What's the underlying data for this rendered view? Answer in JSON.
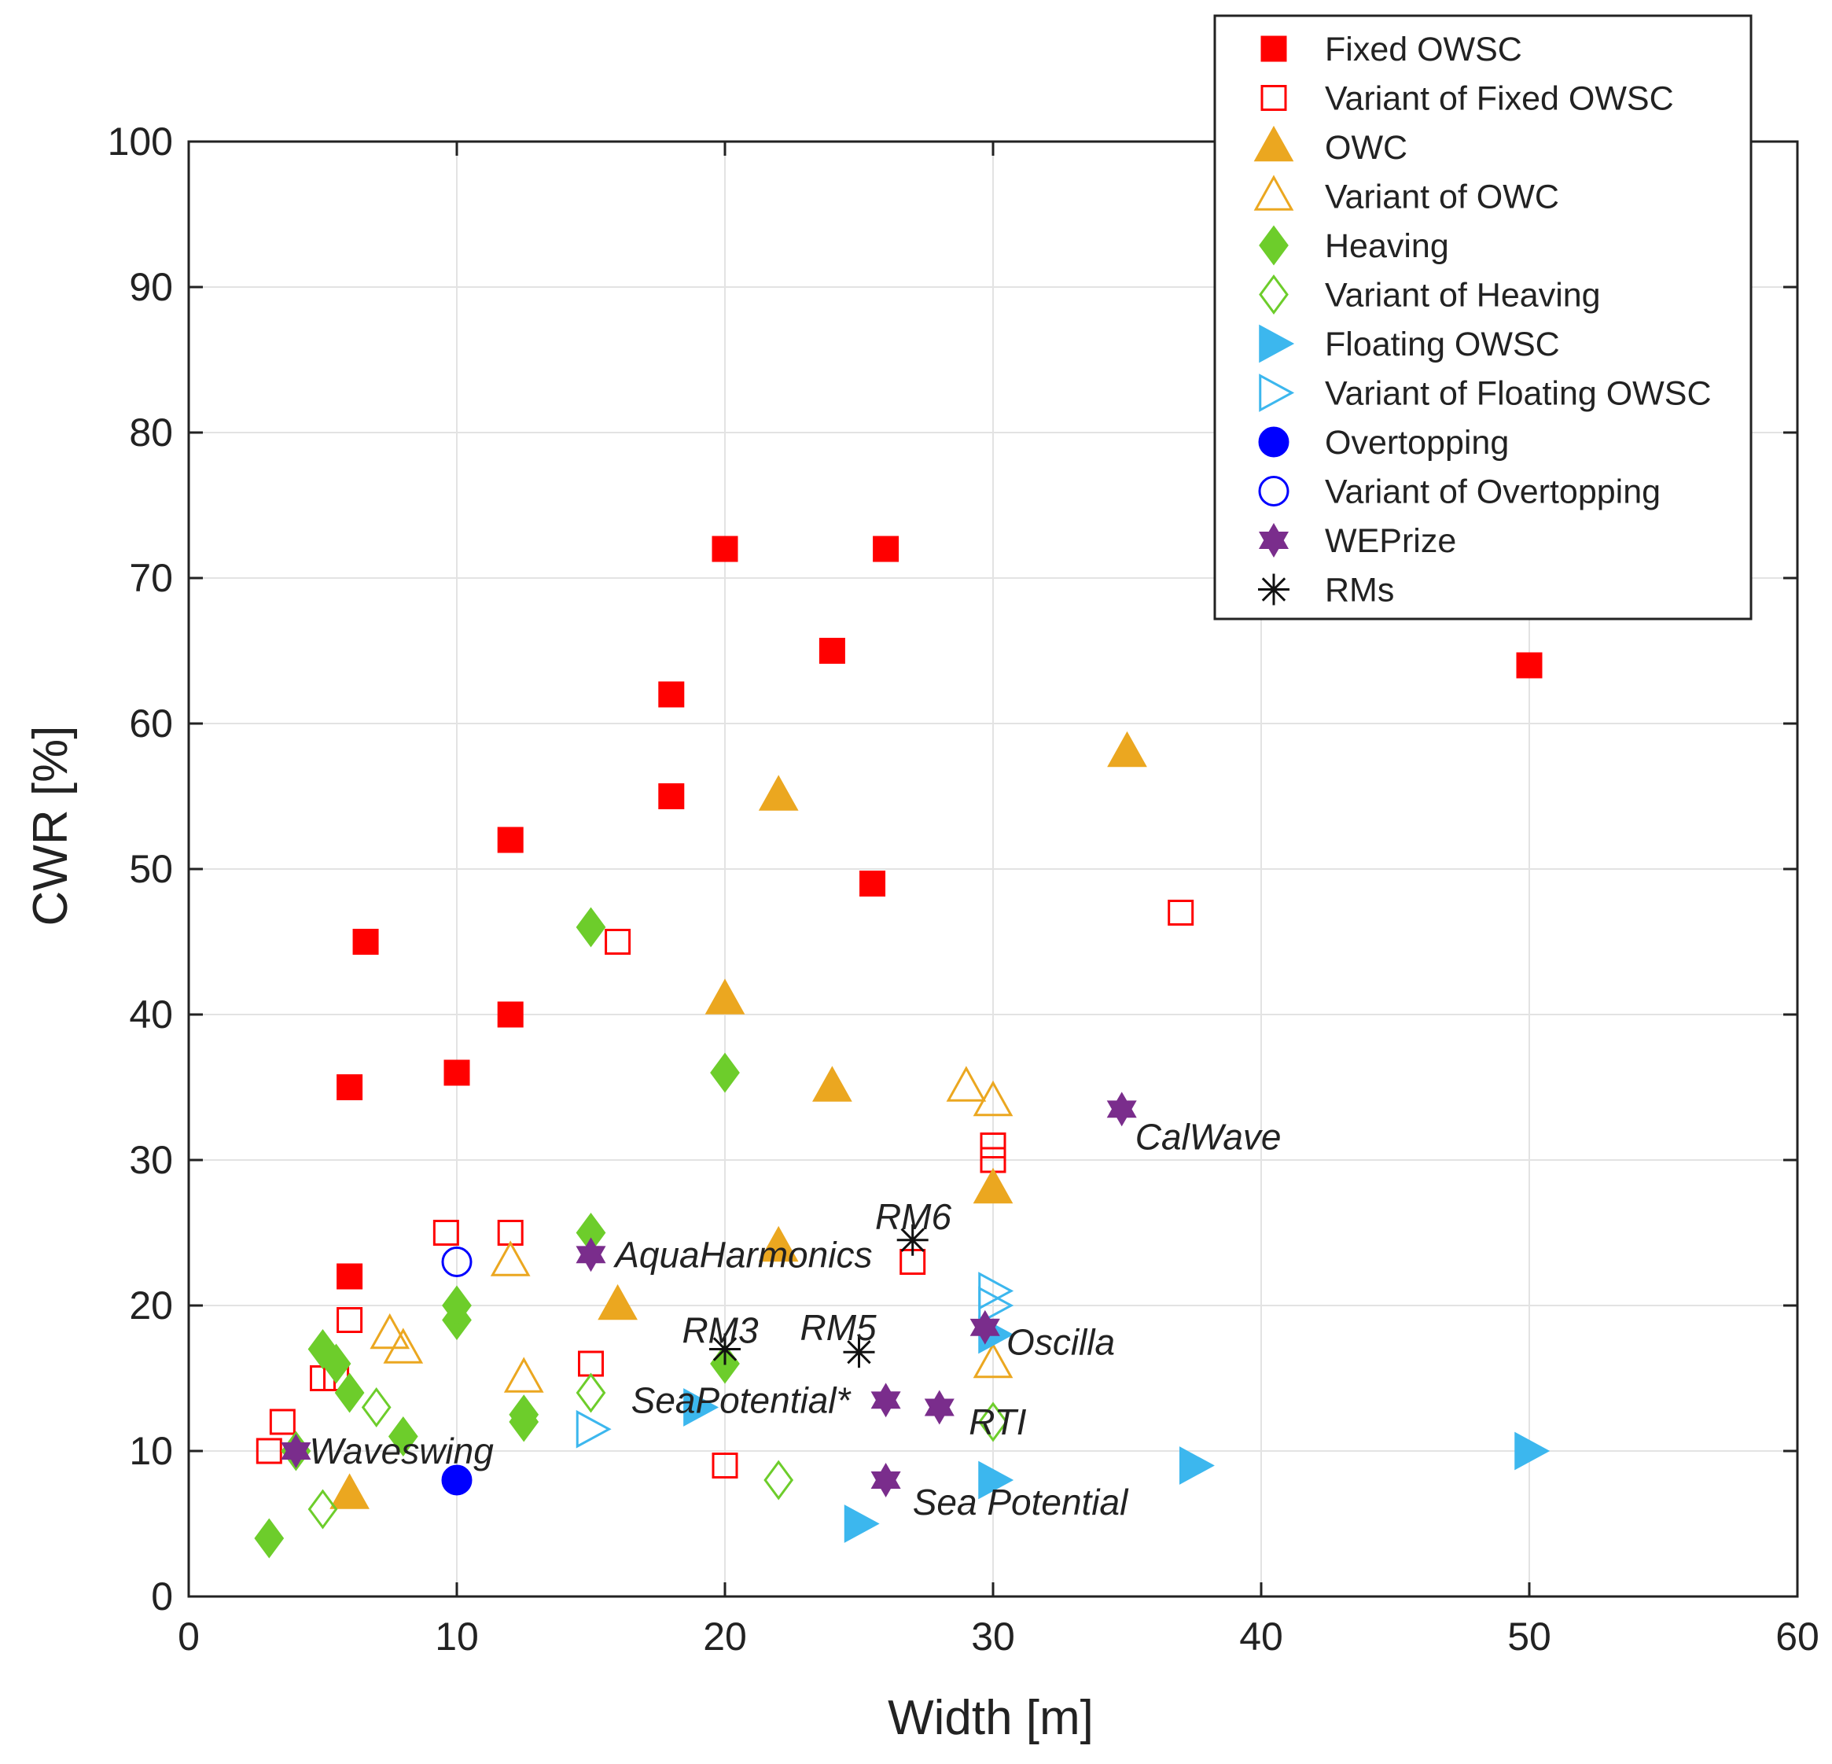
{
  "chart_data": {
    "type": "scatter",
    "title": "",
    "xlabel": "Width  [m]",
    "ylabel": "CWR  [%]",
    "xlim": [
      0,
      60
    ],
    "ylim": [
      0,
      100
    ],
    "xticks": [
      0,
      10,
      20,
      30,
      40,
      50,
      60
    ],
    "yticks": [
      0,
      10,
      20,
      30,
      40,
      50,
      60,
      70,
      80,
      90,
      100
    ],
    "grid": true,
    "legend_position": "top-right",
    "series": [
      {
        "name": "Fixed OWSC",
        "marker": "square",
        "filled": true,
        "color": "#ff0000",
        "points": [
          [
            6,
            22
          ],
          [
            6,
            35
          ],
          [
            6.6,
            45
          ],
          [
            10,
            36
          ],
          [
            12,
            40
          ],
          [
            12,
            52
          ],
          [
            18,
            55
          ],
          [
            18,
            62
          ],
          [
            20,
            72
          ],
          [
            24,
            65
          ],
          [
            25.5,
            49
          ],
          [
            26,
            72
          ],
          [
            50,
            64
          ]
        ]
      },
      {
        "name": "Variant of Fixed OWSC",
        "marker": "square",
        "filled": false,
        "color": "#ff0000",
        "points": [
          [
            3,
            10
          ],
          [
            3.5,
            12
          ],
          [
            5,
            15
          ],
          [
            5.5,
            15
          ],
          [
            6,
            19
          ],
          [
            9.6,
            25
          ],
          [
            12,
            25
          ],
          [
            15,
            16
          ],
          [
            16,
            45
          ],
          [
            20,
            9
          ],
          [
            27,
            23
          ],
          [
            30,
            30
          ],
          [
            30,
            31
          ],
          [
            37,
            47
          ]
        ]
      },
      {
        "name": "OWC",
        "marker": "triangle-up",
        "filled": true,
        "color": "#eba720",
        "points": [
          [
            6,
            7
          ],
          [
            16,
            20
          ],
          [
            20,
            41
          ],
          [
            22,
            24
          ],
          [
            22,
            55
          ],
          [
            24,
            35
          ],
          [
            30,
            28
          ],
          [
            35,
            58
          ]
        ]
      },
      {
        "name": "Variant of OWC",
        "marker": "triangle-up",
        "filled": false,
        "color": "#eba720",
        "points": [
          [
            7.5,
            18
          ],
          [
            8,
            17
          ],
          [
            12,
            23
          ],
          [
            12.5,
            15
          ],
          [
            29,
            35
          ],
          [
            30,
            34
          ],
          [
            30,
            16
          ]
        ]
      },
      {
        "name": "Heaving",
        "marker": "diamond",
        "filled": true,
        "color": "#6dcd2b",
        "points": [
          [
            3,
            4
          ],
          [
            4,
            10
          ],
          [
            5,
            17
          ],
          [
            5.5,
            16
          ],
          [
            6,
            14
          ],
          [
            8,
            11
          ],
          [
            10,
            19
          ],
          [
            10,
            20
          ],
          [
            12.5,
            12
          ],
          [
            12.5,
            12.5
          ],
          [
            15,
            25
          ],
          [
            15,
            46
          ],
          [
            20,
            16
          ],
          [
            20,
            36
          ]
        ]
      },
      {
        "name": "Variant of Heaving",
        "marker": "diamond",
        "filled": false,
        "color": "#6dcd2b",
        "points": [
          [
            5,
            6
          ],
          [
            7,
            13
          ],
          [
            15,
            14
          ],
          [
            22,
            8
          ],
          [
            30,
            12
          ]
        ]
      },
      {
        "name": "Floating OWSC",
        "marker": "triangle-right",
        "filled": true,
        "color": "#3cb7ee",
        "points": [
          [
            19,
            13
          ],
          [
            25,
            5
          ],
          [
            30,
            8
          ],
          [
            30,
            18
          ],
          [
            37.5,
            9
          ],
          [
            50,
            10
          ]
        ]
      },
      {
        "name": "Variant of Floating OWSC",
        "marker": "triangle-right",
        "filled": false,
        "color": "#3cb7ee",
        "points": [
          [
            15,
            11.5
          ],
          [
            30,
            21
          ],
          [
            30,
            20
          ]
        ]
      },
      {
        "name": "Overtopping",
        "marker": "circle",
        "filled": true,
        "color": "#0000ff",
        "points": [
          [
            10,
            8
          ]
        ]
      },
      {
        "name": "Variant of Overtopping",
        "marker": "circle",
        "filled": false,
        "color": "#0000ff",
        "points": [
          [
            10,
            23
          ]
        ]
      },
      {
        "name": "WEPrize",
        "marker": "hexagram",
        "filled": true,
        "color": "#7a2d8c",
        "points": [
          [
            4,
            10
          ],
          [
            15,
            23.5
          ],
          [
            26,
            8
          ],
          [
            26,
            13.5
          ],
          [
            28,
            13
          ],
          [
            29.7,
            18.5
          ],
          [
            34.8,
            33.5
          ]
        ]
      },
      {
        "name": "RMs",
        "marker": "asterisk",
        "filled": false,
        "color": "#111111",
        "points": [
          [
            20,
            17
          ],
          [
            25,
            16.8
          ],
          [
            27,
            24.5
          ]
        ]
      }
    ],
    "annotations": [
      {
        "text": "Waveswing",
        "x": 4.5,
        "y": 10
      },
      {
        "text": "AquaHarmonics",
        "x": 15.9,
        "y": 23.5
      },
      {
        "text": "SeaPotential*",
        "x": 16.5,
        "y": 13.5
      },
      {
        "text": "Sea Potential",
        "x": 27,
        "y": 6.5
      },
      {
        "text": "RTI",
        "x": 29.1,
        "y": 12
      },
      {
        "text": "Oscilla",
        "x": 30.5,
        "y": 17.5
      },
      {
        "text": "CalWave",
        "x": 35.3,
        "y": 31.6
      },
      {
        "text": "RM3",
        "x": 18.4,
        "y": 18.3
      },
      {
        "text": "RM5",
        "x": 22.8,
        "y": 18.5
      },
      {
        "text": "RM6",
        "x": 25.6,
        "y": 26.1
      }
    ]
  }
}
